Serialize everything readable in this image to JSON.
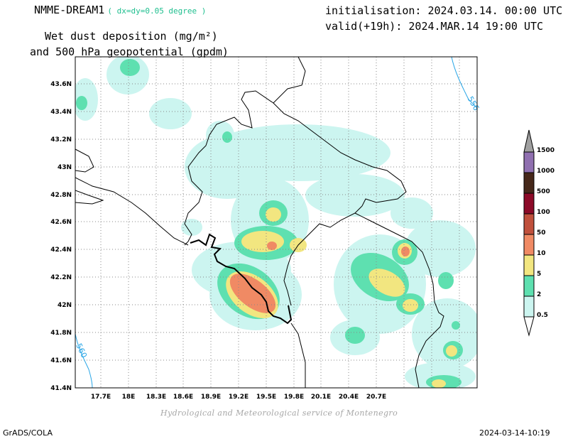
{
  "header": {
    "model": "NMME-DREAM1",
    "resolution": "( dx=dy=0.05 degree )",
    "initialisation": "initialisation: 2024.03.14. 00:00 UTC",
    "valid": "valid(+19h): 2024.MAR.14 19:00 UTC",
    "title_line1": "Wet dust deposition (mg/m²)",
    "title_line2": "and 500 hPa geopotential (gpdm)"
  },
  "map": {
    "lat_labels": [
      "43.6N",
      "43.4N",
      "43.2N",
      "43N",
      "42.8N",
      "42.6N",
      "42.4N",
      "42.2N",
      "42N",
      "41.8N",
      "41.6N",
      "41.4N"
    ],
    "lon_labels": [
      "17.7E",
      "18E",
      "18.3E",
      "18.6E",
      "18.9E",
      "19.2E",
      "19.5E",
      "19.8E",
      "20.1E",
      "20.4E",
      "20.7E"
    ],
    "contour_labels": [
      "556",
      "560"
    ],
    "contour_color": "#2aa6e6",
    "grid": true
  },
  "colorbar": {
    "levels": [
      "0.5",
      "2",
      "5",
      "10",
      "50",
      "100",
      "500",
      "1000",
      "1500"
    ],
    "colors": [
      "#ccf5f0",
      "#5ee0b0",
      "#f2e680",
      "#f08a64",
      "#c0503c",
      "#8c0a28",
      "#46281a",
      "#9070b0",
      "#a0a0a0"
    ]
  },
  "footer": {
    "credit": "Hydrological and Meteorological service of Montenegro",
    "software": "GrADS/COLA",
    "timestamp": "2024-03-14-10:19"
  }
}
